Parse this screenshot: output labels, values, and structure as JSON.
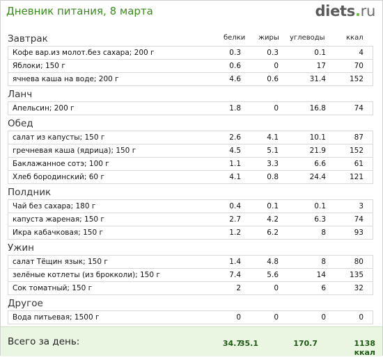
{
  "header": {
    "title": "Дневник питания, 8 марта",
    "logo_main": "diets",
    "logo_dot": ".",
    "logo_tld": "ru"
  },
  "columns": [
    "белки",
    "жиры",
    "углеводы",
    "ккал"
  ],
  "sections": [
    {
      "title": "Завтрак",
      "rows": [
        {
          "name": "Кофе вар.из молот.без сахара; 200 г",
          "v": [
            "0.3",
            "0.3",
            "0.1",
            "4"
          ]
        },
        {
          "name": "Яблоки; 150 г",
          "v": [
            "0.6",
            "0",
            "17",
            "70"
          ]
        },
        {
          "name": "ячнева каша на воде; 200 г",
          "v": [
            "4.6",
            "0.6",
            "31.4",
            "152"
          ]
        }
      ]
    },
    {
      "title": "Ланч",
      "rows": [
        {
          "name": "Апельсин; 200 г",
          "v": [
            "1.8",
            "0",
            "16.8",
            "74"
          ]
        }
      ]
    },
    {
      "title": "Обед",
      "rows": [
        {
          "name": "салат из капусты; 150 г",
          "v": [
            "2.6",
            "4.1",
            "10.1",
            "87"
          ]
        },
        {
          "name": "гречневая каша (ядрица); 150 г",
          "v": [
            "4.5",
            "5.1",
            "21.9",
            "152"
          ]
        },
        {
          "name": "Баклажанное сотэ; 100 г",
          "v": [
            "1.1",
            "3.3",
            "6.6",
            "61"
          ]
        },
        {
          "name": "Хлеб бородинский; 60 г",
          "v": [
            "4.1",
            "0.8",
            "24.4",
            "121"
          ]
        }
      ]
    },
    {
      "title": "Полдник",
      "rows": [
        {
          "name": "Чай без сахара; 180 г",
          "v": [
            "0.4",
            "0.1",
            "0.1",
            "3"
          ]
        },
        {
          "name": "капуста жареная; 150 г",
          "v": [
            "2.7",
            "4.2",
            "6.3",
            "74"
          ]
        },
        {
          "name": "Икра кабачковая; 150 г",
          "v": [
            "1.2",
            "6.2",
            "8",
            "93"
          ]
        }
      ]
    },
    {
      "title": "Ужин",
      "rows": [
        {
          "name": "салат Тёщин язык; 150 г",
          "v": [
            "1.4",
            "4.8",
            "8",
            "80"
          ]
        },
        {
          "name": "зелёные котлеты (из брокколи); 150 г",
          "v": [
            "7.4",
            "5.6",
            "14",
            "135"
          ]
        },
        {
          "name": "Сок томатный; 150 г",
          "v": [
            "2",
            "0",
            "6",
            "32"
          ]
        }
      ]
    },
    {
      "title": "Другое",
      "rows": [
        {
          "name": "Вода питьевая; 1500 г",
          "v": [
            "0",
            "0",
            "0",
            "0"
          ]
        }
      ]
    }
  ],
  "total": {
    "label": "Всего за день:",
    "protein": "34.7",
    "fat": "35.1",
    "carbs": "170.7",
    "kcal": "1138 ккал"
  }
}
